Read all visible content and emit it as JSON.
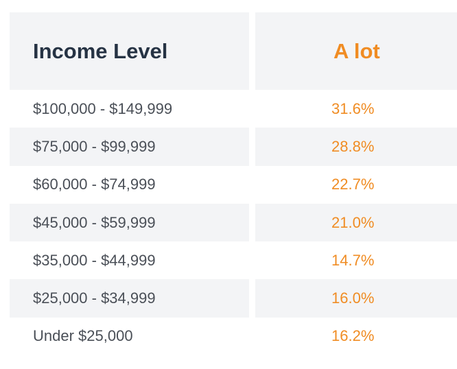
{
  "chart_data": {
    "type": "table",
    "columns": [
      "Income Level",
      "A lot"
    ],
    "rows": [
      {
        "label": "$100,000 - $149,999",
        "value": "31.6%"
      },
      {
        "label": "$75,000 - $99,999",
        "value": "28.8%"
      },
      {
        "label": "$60,000 - $74,999",
        "value": "22.7%"
      },
      {
        "label": "$45,000 - $59,999",
        "value": "21.0%"
      },
      {
        "label": "$35,000 - $44,999",
        "value": "14.7%"
      },
      {
        "label": "$25,000 - $34,999",
        "value": "16.0%"
      },
      {
        "label": "Under $25,000",
        "value": "16.2%"
      }
    ],
    "values": [
      31.6,
      28.8,
      22.7,
      21.0,
      14.7,
      16.0,
      16.2
    ],
    "unit": "%"
  },
  "colors": {
    "header_text": "#263344",
    "accent": "#f08c23",
    "row_text": "#4a4f57",
    "shade": "#f3f4f6"
  }
}
